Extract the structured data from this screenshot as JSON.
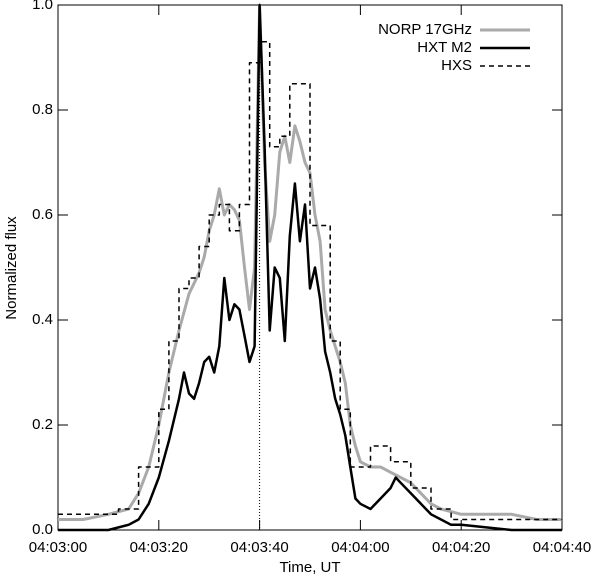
{
  "chart_data": {
    "type": "line",
    "xlabel": "Time, UT",
    "ylabel": "Normalized flux",
    "xlim": [
      14580,
      14680
    ],
    "ylim": [
      0,
      1
    ],
    "xticks": [
      {
        "value": 14580,
        "label": "04:03:00"
      },
      {
        "value": 14600,
        "label": "04:03:20"
      },
      {
        "value": 14620,
        "label": "04:03:40"
      },
      {
        "value": 14640,
        "label": "04:04:00"
      },
      {
        "value": 14660,
        "label": "04:04:20"
      },
      {
        "value": 14680,
        "label": "04:04:40"
      }
    ],
    "yticks": [
      {
        "value": 0,
        "label": "0.0"
      },
      0.2,
      0.4,
      0.6,
      0.8,
      {
        "value": 1,
        "label": "1.0"
      }
    ],
    "vline_x": 14620,
    "grid": false,
    "legend": "upper right",
    "series": [
      {
        "name": "NORP 17GHz",
        "color": "#aaaaaa",
        "width": 3,
        "dashed": false,
        "step": false,
        "x": [
          14580,
          14585,
          14590,
          14594,
          14596,
          14598,
          14600,
          14602,
          14604,
          14606,
          14608,
          14609,
          14610,
          14611,
          14612,
          14613,
          14614,
          14615,
          14616,
          14617,
          14618,
          14619,
          14620,
          14621,
          14622,
          14623,
          14624,
          14625,
          14626,
          14627,
          14628,
          14629,
          14630,
          14631,
          14632,
          14633,
          14634,
          14635,
          14636,
          14637,
          14638,
          14639,
          14640,
          14642,
          14644,
          14646,
          14648,
          14650,
          14652,
          14654,
          14656,
          14660,
          14665,
          14670,
          14675,
          14680
        ],
        "values": [
          0.02,
          0.02,
          0.03,
          0.04,
          0.07,
          0.12,
          0.2,
          0.3,
          0.38,
          0.45,
          0.49,
          0.52,
          0.57,
          0.6,
          0.65,
          0.6,
          0.62,
          0.61,
          0.59,
          0.5,
          0.42,
          0.5,
          1.0,
          0.7,
          0.55,
          0.6,
          0.72,
          0.75,
          0.7,
          0.77,
          0.74,
          0.7,
          0.68,
          0.6,
          0.55,
          0.42,
          0.38,
          0.35,
          0.32,
          0.28,
          0.2,
          0.16,
          0.13,
          0.12,
          0.12,
          0.11,
          0.1,
          0.09,
          0.07,
          0.05,
          0.04,
          0.03,
          0.03,
          0.03,
          0.02,
          0.02
        ]
      },
      {
        "name": "HXT M2",
        "color": "#000000",
        "width": 2.5,
        "dashed": false,
        "step": false,
        "x": [
          14580,
          14590,
          14594,
          14596,
          14598,
          14600,
          14602,
          14604,
          14605,
          14606,
          14607,
          14608,
          14609,
          14610,
          14611,
          14612,
          14613,
          14614,
          14615,
          14616,
          14617,
          14618,
          14619,
          14620,
          14621,
          14622,
          14623,
          14624,
          14625,
          14626,
          14627,
          14628,
          14629,
          14630,
          14631,
          14632,
          14633,
          14634,
          14635,
          14636,
          14637,
          14638,
          14639,
          14640,
          14642,
          14644,
          14646,
          14647,
          14648,
          14650,
          14652,
          14654,
          14656,
          14658,
          14660,
          14670,
          14680
        ],
        "values": [
          0,
          0,
          0.01,
          0.02,
          0.05,
          0.1,
          0.17,
          0.25,
          0.3,
          0.26,
          0.25,
          0.28,
          0.32,
          0.33,
          0.3,
          0.35,
          0.48,
          0.4,
          0.43,
          0.42,
          0.37,
          0.32,
          0.35,
          1.0,
          0.73,
          0.38,
          0.5,
          0.48,
          0.36,
          0.56,
          0.66,
          0.55,
          0.62,
          0.46,
          0.5,
          0.44,
          0.34,
          0.3,
          0.25,
          0.22,
          0.18,
          0.12,
          0.06,
          0.05,
          0.04,
          0.06,
          0.08,
          0.1,
          0.09,
          0.07,
          0.05,
          0.03,
          0.02,
          0.01,
          0.01,
          0,
          0
        ]
      },
      {
        "name": "HXS",
        "color": "#000000",
        "width": 1.5,
        "dashed": true,
        "step": true,
        "x": [
          14580,
          14592,
          14596,
          14600,
          14602,
          14604,
          14606,
          14608,
          14610,
          14612,
          14614,
          14616,
          14618,
          14620,
          14622,
          14624,
          14626,
          14630,
          14634,
          14636,
          14638,
          14642,
          14646,
          14650,
          14654,
          14658,
          14680
        ],
        "values": [
          0.03,
          0.04,
          0.12,
          0.23,
          0.36,
          0.46,
          0.48,
          0.54,
          0.6,
          0.62,
          0.57,
          0.62,
          0.89,
          0.93,
          0.73,
          0.75,
          0.85,
          0.58,
          0.36,
          0.23,
          0.12,
          0.16,
          0.13,
          0.08,
          0.04,
          0.02,
          0.02
        ]
      }
    ]
  }
}
